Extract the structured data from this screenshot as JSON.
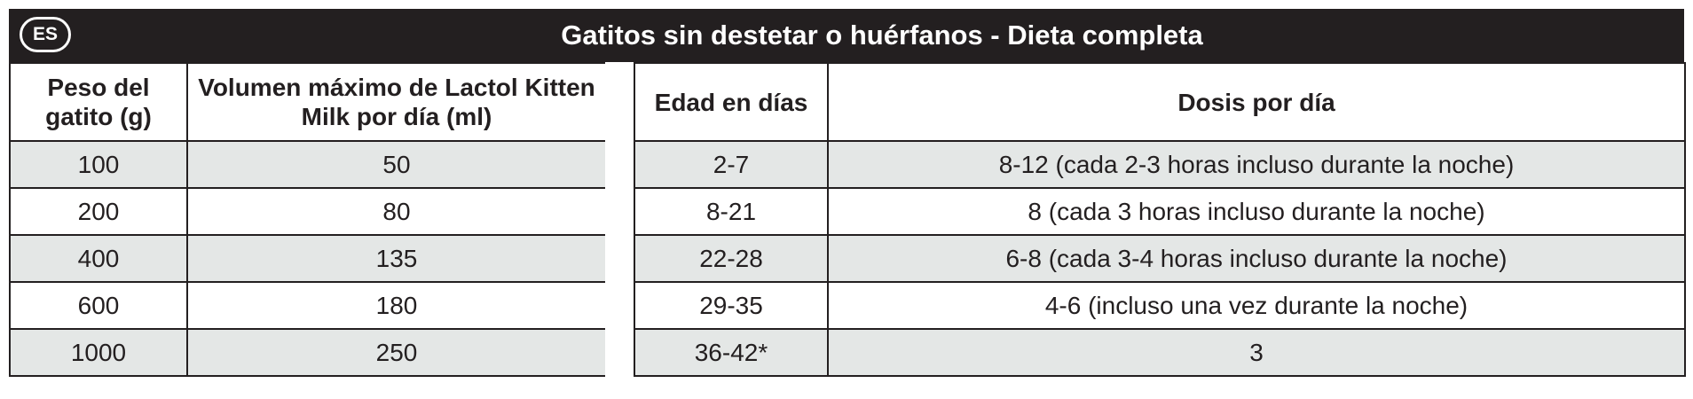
{
  "badge": "ES",
  "title": "Gatitos sin destetar o huérfanos - Dieta completa",
  "weight_table": {
    "headers": [
      "Peso del gatito (g)",
      "Volumen máximo de Lactol Kitten Milk por día (ml)"
    ],
    "rows": [
      [
        "100",
        "50"
      ],
      [
        "200",
        "80"
      ],
      [
        "400",
        "135"
      ],
      [
        "600",
        "180"
      ],
      [
        "1000",
        "250"
      ]
    ]
  },
  "age_table": {
    "headers": [
      "Edad en días",
      "Dosis por día"
    ],
    "rows": [
      [
        "2-7",
        "8-12 (cada 2-3 horas incluso durante la noche)"
      ],
      [
        "8-21",
        "8 (cada 3 horas incluso durante la noche)"
      ],
      [
        "22-28",
        "6-8 (cada 3-4 horas incluso durante la noche)"
      ],
      [
        "29-35",
        "4-6 (incluso una vez durante la noche)"
      ],
      [
        "36-42*",
        "3"
      ]
    ]
  }
}
